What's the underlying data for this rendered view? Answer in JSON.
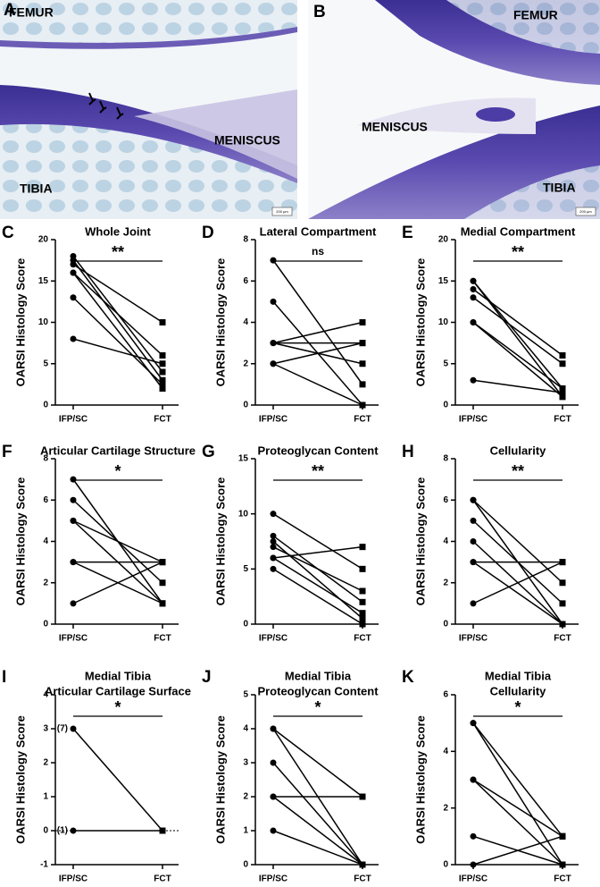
{
  "images": [
    {
      "panel": "A",
      "labels": [
        "FEMUR",
        "MENISCUS",
        "TIBIA"
      ],
      "scale_bar": "200 µm"
    },
    {
      "panel": "B",
      "labels": [
        "FEMUR",
        "MENISCUS",
        "TIBIA"
      ],
      "scale_bar": "200 µm"
    }
  ],
  "chart_data": [
    {
      "type": "line",
      "panel": "C",
      "title": [
        "Whole Joint"
      ],
      "ylabel": "OARSI Histology Score",
      "categories": [
        "IFP/SC",
        "FCT"
      ],
      "markers": [
        "circle",
        "square"
      ],
      "color": "#000000",
      "annotation": "**",
      "ylim": [
        0,
        20
      ],
      "yticks": [
        0,
        5,
        10,
        15,
        20
      ],
      "series": [
        {
          "values": [
            18,
            4
          ]
        },
        {
          "values": [
            17.5,
            3
          ]
        },
        {
          "values": [
            17,
            10
          ]
        },
        {
          "values": [
            16,
            2
          ]
        },
        {
          "values": [
            16,
            6
          ]
        },
        {
          "values": [
            13,
            2.5
          ]
        },
        {
          "values": [
            8,
            5
          ]
        }
      ]
    },
    {
      "type": "line",
      "panel": "D",
      "title": [
        "Lateral Compartment"
      ],
      "ylabel": "OARSI Histology Score",
      "categories": [
        "IFP/SC",
        "FCT"
      ],
      "markers": [
        "circle",
        "square"
      ],
      "color": "#000000",
      "annotation": "ns",
      "ylim": [
        0,
        8
      ],
      "yticks": [
        0,
        2,
        4,
        6,
        8
      ],
      "series": [
        {
          "values": [
            7,
            1
          ]
        },
        {
          "values": [
            5,
            0
          ]
        },
        {
          "values": [
            3,
            4
          ]
        },
        {
          "values": [
            3,
            3
          ]
        },
        {
          "values": [
            3,
            2
          ]
        },
        {
          "values": [
            2,
            3
          ]
        },
        {
          "values": [
            2,
            0
          ]
        }
      ]
    },
    {
      "type": "line",
      "panel": "E",
      "title": [
        "Medial Compartment"
      ],
      "ylabel": "OARSI Histology Score",
      "categories": [
        "IFP/SC",
        "FCT"
      ],
      "markers": [
        "circle",
        "square"
      ],
      "color": "#000000",
      "annotation": "**",
      "ylim": [
        0,
        20
      ],
      "yticks": [
        0,
        5,
        10,
        15,
        20
      ],
      "series": [
        {
          "values": [
            15,
            2
          ]
        },
        {
          "values": [
            15,
            1
          ]
        },
        {
          "values": [
            14,
            6
          ]
        },
        {
          "values": [
            13,
            5
          ]
        },
        {
          "values": [
            10,
            1
          ]
        },
        {
          "values": [
            10,
            2
          ]
        },
        {
          "values": [
            3,
            1.5
          ]
        }
      ]
    },
    {
      "type": "line",
      "panel": "F",
      "title": [
        "Articular Cartilage Structure"
      ],
      "ylabel": "OARSI Histology Score",
      "categories": [
        "IFP/SC",
        "FCT"
      ],
      "markers": [
        "circle",
        "square"
      ],
      "color": "#000000",
      "annotation": "*",
      "ylim": [
        0,
        8
      ],
      "yticks": [
        0,
        2,
        4,
        6,
        8
      ],
      "series": [
        {
          "values": [
            7,
            1
          ]
        },
        {
          "values": [
            6,
            2
          ]
        },
        {
          "values": [
            5,
            1
          ]
        },
        {
          "values": [
            5,
            3
          ]
        },
        {
          "values": [
            3,
            3
          ]
        },
        {
          "values": [
            3,
            1
          ]
        },
        {
          "values": [
            1,
            3
          ]
        }
      ]
    },
    {
      "type": "line",
      "panel": "G",
      "title": [
        "Proteoglycan Content"
      ],
      "ylabel": "OARSI Histology Score",
      "categories": [
        "IFP/SC",
        "FCT"
      ],
      "markers": [
        "circle",
        "square"
      ],
      "color": "#000000",
      "annotation": "**",
      "ylim": [
        0,
        15
      ],
      "yticks": [
        0,
        5,
        10,
        15
      ],
      "series": [
        {
          "values": [
            10,
            5
          ]
        },
        {
          "values": [
            8,
            2
          ]
        },
        {
          "values": [
            7.5,
            0.5
          ]
        },
        {
          "values": [
            7,
            3
          ]
        },
        {
          "values": [
            6,
            7
          ]
        },
        {
          "values": [
            6,
            1
          ]
        },
        {
          "values": [
            5,
            0
          ]
        }
      ]
    },
    {
      "type": "line",
      "panel": "H",
      "title": [
        "Cellularity"
      ],
      "ylabel": "OARSI Histology Score",
      "categories": [
        "IFP/SC",
        "FCT"
      ],
      "markers": [
        "circle",
        "square"
      ],
      "color": "#000000",
      "annotation": "**",
      "ylim": [
        0,
        8
      ],
      "yticks": [
        0,
        2,
        4,
        6,
        8
      ],
      "series": [
        {
          "values": [
            6,
            2
          ]
        },
        {
          "values": [
            6,
            0
          ]
        },
        {
          "values": [
            5,
            1
          ]
        },
        {
          "values": [
            4,
            0
          ]
        },
        {
          "values": [
            3,
            3
          ]
        },
        {
          "values": [
            3,
            0
          ]
        },
        {
          "values": [
            1,
            3
          ]
        }
      ]
    },
    {
      "type": "line",
      "panel": "I",
      "title": [
        "Medial Tibia",
        "Articular Cartilage Surface"
      ],
      "ylabel": "OARSI Histology Score",
      "categories": [
        "IFP/SC",
        "FCT"
      ],
      "markers": [
        "circle",
        "square"
      ],
      "color": "#000000",
      "annotation": "*",
      "ylim": [
        -1,
        4
      ],
      "yticks": [
        -1,
        0,
        1,
        2,
        3,
        4
      ],
      "refline": 0,
      "series": [
        {
          "values": [
            3,
            0
          ],
          "count_label": "(7)"
        },
        {
          "values": [
            0,
            0
          ],
          "count_label": "(1)"
        }
      ]
    },
    {
      "type": "line",
      "panel": "J",
      "title": [
        "Medial Tibia",
        "Proteoglycan Content"
      ],
      "ylabel": "OARSI Histology Score",
      "categories": [
        "IFP/SC",
        "FCT"
      ],
      "markers": [
        "circle",
        "square"
      ],
      "color": "#000000",
      "annotation": "*",
      "ylim": [
        0,
        5
      ],
      "yticks": [
        0,
        1,
        2,
        3,
        4,
        5
      ],
      "series": [
        {
          "values": [
            4,
            2
          ]
        },
        {
          "values": [
            4,
            0
          ]
        },
        {
          "values": [
            3,
            0
          ]
        },
        {
          "values": [
            2,
            2
          ]
        },
        {
          "values": [
            2,
            0
          ]
        },
        {
          "values": [
            1,
            0
          ]
        }
      ]
    },
    {
      "type": "line",
      "panel": "K",
      "title": [
        "Medial Tibia",
        "Cellularity"
      ],
      "ylabel": "OARSI Histology Score",
      "categories": [
        "IFP/SC",
        "FCT"
      ],
      "markers": [
        "circle",
        "square"
      ],
      "color": "#000000",
      "annotation": "*",
      "ylim": [
        0,
        6
      ],
      "yticks": [
        0,
        2,
        4,
        6
      ],
      "refline": 0,
      "series": [
        {
          "values": [
            5,
            1
          ]
        },
        {
          "values": [
            5,
            0
          ]
        },
        {
          "values": [
            3,
            1
          ]
        },
        {
          "values": [
            3,
            0
          ]
        },
        {
          "values": [
            1,
            0
          ]
        },
        {
          "values": [
            0,
            1
          ]
        }
      ]
    }
  ]
}
